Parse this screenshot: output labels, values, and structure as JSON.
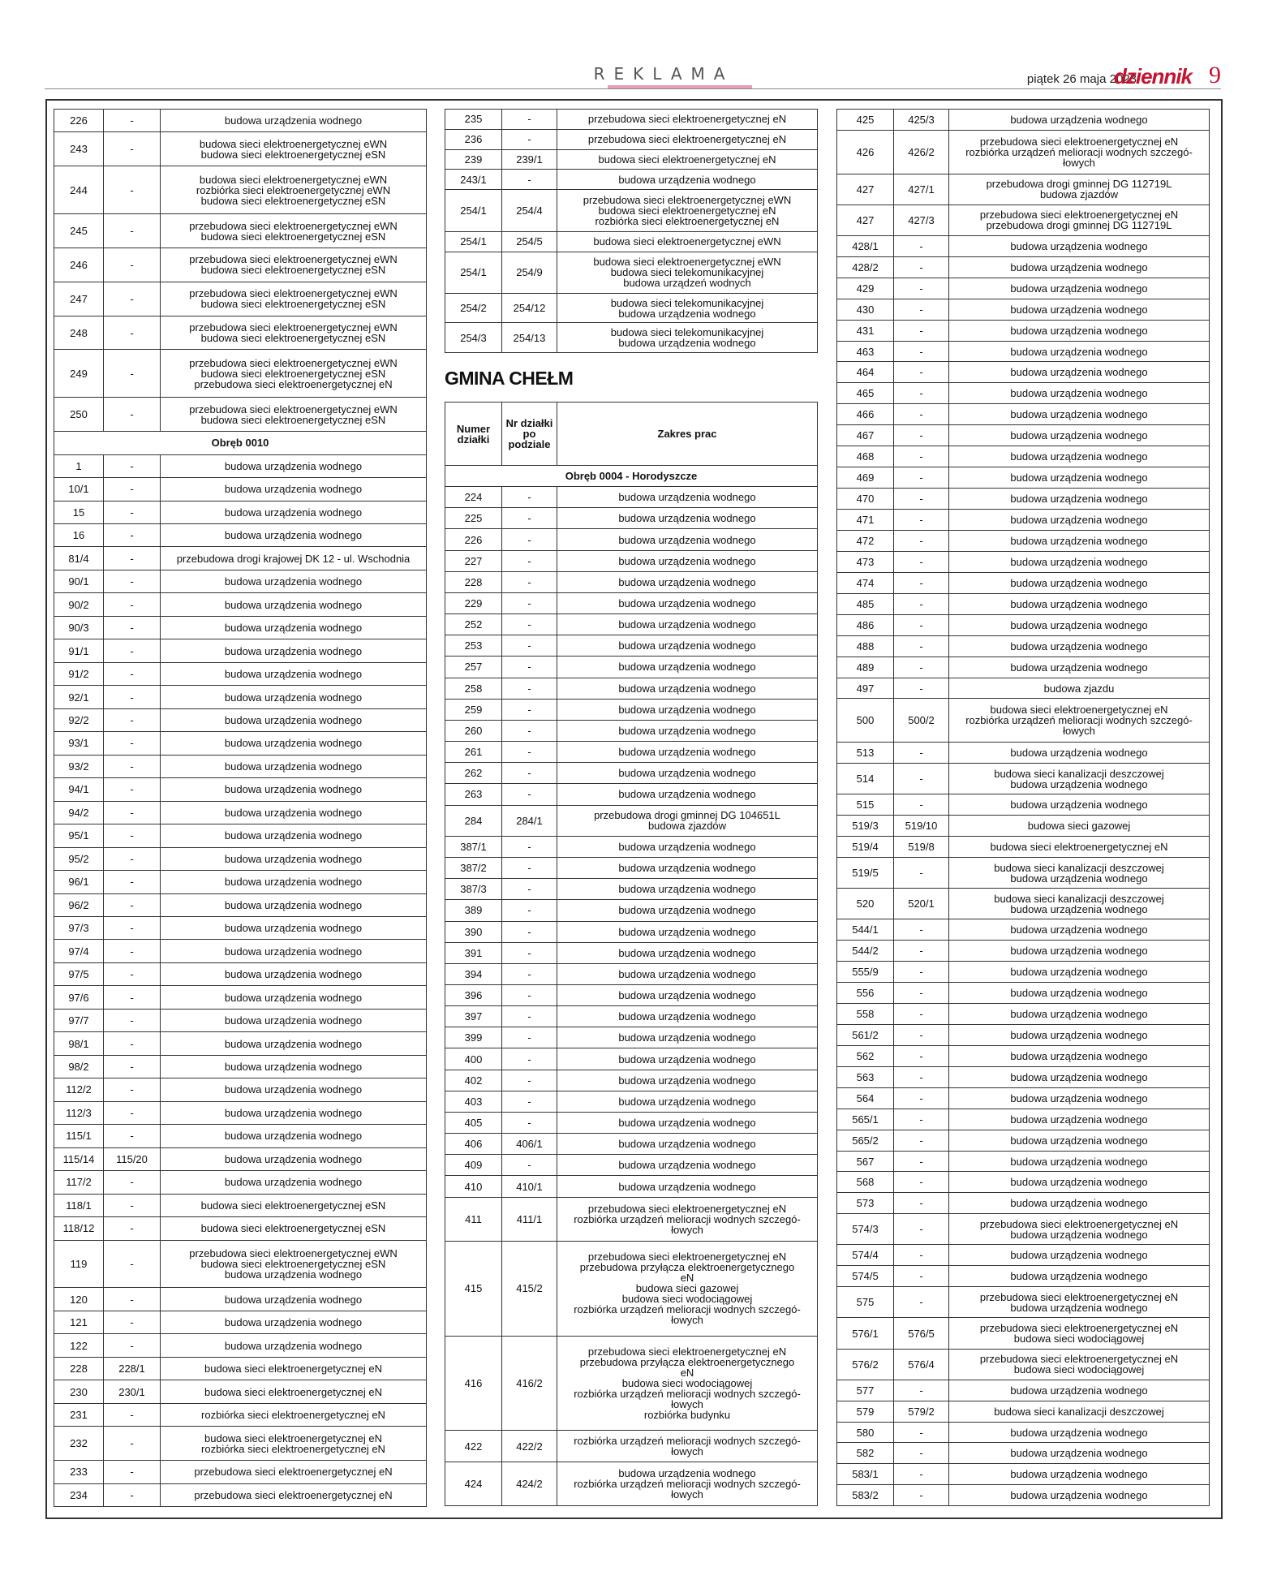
{
  "header": {
    "section_label": "REKLAMA",
    "date": "piątek 26 maja 2023",
    "brand": "dziennik",
    "page_number": "9"
  },
  "gmina_heading": "GMINA CHEŁM",
  "col1": [
    [
      "226",
      "-",
      "budowa urządzenia wodnego"
    ],
    [
      "243",
      "-",
      "budowa sieci elektroenergetycznej eWN\nbudowa sieci elektroenergetycznej eSN"
    ],
    [
      "244",
      "-",
      "budowa sieci elektroenergetycznej eWN\nrozbiórka sieci elektroenergetycznej eWN\nbudowa sieci elektroenergetycznej eSN"
    ],
    [
      "245",
      "-",
      "przebudowa sieci elektroenergetycznej eWN\nbudowa sieci elektroenergetycznej eSN"
    ],
    [
      "246",
      "-",
      "przebudowa sieci elektroenergetycznej eWN\nbudowa sieci elektroenergetycznej eSN"
    ],
    [
      "247",
      "-",
      "przebudowa sieci elektroenergetycznej eWN\nbudowa sieci elektroenergetycznej eSN"
    ],
    [
      "248",
      "-",
      "przebudowa sieci elektroenergetycznej eWN\nbudowa sieci elektroenergetycznej eSN"
    ],
    [
      "249",
      "-",
      "przebudowa sieci elektroenergetycznej eWN\nbudowa sieci elektroenergetycznej eSN\nprzebudowa sieci elektroenergetycznej eN"
    ],
    [
      "250",
      "-",
      "przebudowa sieci elektroenergetycznej eWN\nbudowa sieci elektroenergetycznej eSN"
    ],
    [
      "Obręb 0010"
    ],
    [
      "1",
      "-",
      "budowa urządzenia wodnego"
    ],
    [
      "10/1",
      "-",
      "budowa urządzenia wodnego"
    ],
    [
      "15",
      "-",
      "budowa urządzenia wodnego"
    ],
    [
      "16",
      "-",
      "budowa urządzenia wodnego"
    ],
    [
      "81/4",
      "-",
      "przebudowa drogi krajowej DK 12 - ul. Wschodnia"
    ],
    [
      "90/1",
      "-",
      "budowa urządzenia wodnego"
    ],
    [
      "90/2",
      "-",
      "budowa urządzenia wodnego"
    ],
    [
      "90/3",
      "-",
      "budowa urządzenia wodnego"
    ],
    [
      "91/1",
      "-",
      "budowa urządzenia wodnego"
    ],
    [
      "91/2",
      "-",
      "budowa urządzenia wodnego"
    ],
    [
      "92/1",
      "-",
      "budowa urządzenia wodnego"
    ],
    [
      "92/2",
      "-",
      "budowa urządzenia wodnego"
    ],
    [
      "93/1",
      "-",
      "budowa urządzenia wodnego"
    ],
    [
      "93/2",
      "-",
      "budowa urządzenia wodnego"
    ],
    [
      "94/1",
      "-",
      "budowa urządzenia wodnego"
    ],
    [
      "94/2",
      "-",
      "budowa urządzenia wodnego"
    ],
    [
      "95/1",
      "-",
      "budowa urządzenia wodnego"
    ],
    [
      "95/2",
      "-",
      "budowa urządzenia wodnego"
    ],
    [
      "96/1",
      "-",
      "budowa urządzenia wodnego"
    ],
    [
      "96/2",
      "-",
      "budowa urządzenia wodnego"
    ],
    [
      "97/3",
      "-",
      "budowa urządzenia wodnego"
    ],
    [
      "97/4",
      "-",
      "budowa urządzenia wodnego"
    ],
    [
      "97/5",
      "-",
      "budowa urządzenia wodnego"
    ],
    [
      "97/6",
      "-",
      "budowa urządzenia wodnego"
    ],
    [
      "97/7",
      "-",
      "budowa urządzenia wodnego"
    ],
    [
      "98/1",
      "-",
      "budowa urządzenia wodnego"
    ],
    [
      "98/2",
      "-",
      "budowa urządzenia wodnego"
    ],
    [
      "112/2",
      "-",
      "budowa urządzenia wodnego"
    ],
    [
      "112/3",
      "-",
      "budowa urządzenia wodnego"
    ],
    [
      "115/1",
      "-",
      "budowa urządzenia wodnego"
    ],
    [
      "115/14",
      "115/20",
      "budowa urządzenia wodnego"
    ],
    [
      "117/2",
      "-",
      "budowa urządzenia wodnego"
    ],
    [
      "118/1",
      "-",
      "budowa sieci elektroenergetycznej eSN"
    ],
    [
      "118/12",
      "-",
      "budowa sieci elektroenergetycznej eSN"
    ],
    [
      "119",
      "-",
      "przebudowa sieci elektroenergetycznej eWN\nbudowa sieci elektroenergetycznej eSN\nbudowa urządzenia wodnego"
    ],
    [
      "120",
      "-",
      "budowa urządzenia wodnego"
    ],
    [
      "121",
      "-",
      "budowa urządzenia wodnego"
    ],
    [
      "122",
      "-",
      "budowa urządzenia wodnego"
    ],
    [
      "228",
      "228/1",
      "budowa sieci elektroenergetycznej eN"
    ],
    [
      "230",
      "230/1",
      "budowa sieci elektroenergetycznej eN"
    ],
    [
      "231",
      "-",
      "rozbiórka sieci elektroenergetycznej eN"
    ],
    [
      "232",
      "-",
      "budowa sieci elektroenergetycznej eN\nrozbiórka sieci elektroenergetycznej eN"
    ],
    [
      "233",
      "-",
      "przebudowa sieci elektroenergetycznej eN"
    ],
    [
      "234",
      "-",
      "przebudowa sieci elektroenergetycznej eN"
    ]
  ],
  "col2a": [
    [
      "235",
      "-",
      "przebudowa sieci elektroenergetycznej eN"
    ],
    [
      "236",
      "-",
      "przebudowa sieci elektroenergetycznej eN"
    ],
    [
      "239",
      "239/1",
      "budowa sieci elektroenergetycznej eN"
    ],
    [
      "243/1",
      "-",
      "budowa urządzenia wodnego"
    ],
    [
      "254/1",
      "254/4",
      "przebudowa sieci elektroenergetycznej eWN\nbudowa sieci elektroenergetycznej eN\nrozbiórka sieci elektroenergetycznej eN"
    ],
    [
      "254/1",
      "254/5",
      "budowa sieci elektroenergetycznej eWN"
    ],
    [
      "254/1",
      "254/9",
      "budowa sieci elektroenergetycznej eWN\nbudowa sieci telekomunikacyjnej\nbudowa urządzeń wodnych"
    ],
    [
      "254/2",
      "254/12",
      "budowa sieci telekomunikacyjnej\nbudowa urządzenia wodnego"
    ],
    [
      "254/3",
      "254/13",
      "budowa sieci telekomunikacyjnej\nbudowa urządzenia wodnego"
    ]
  ],
  "col2b_header": {
    "c1": "Numer działki",
    "c2": "Nr działki po podziale",
    "c3": "Zakres prac"
  },
  "col2b": [
    [
      "Obręb 0004 - Horodyszcze"
    ],
    [
      "224",
      "-",
      "budowa urządzenia wodnego"
    ],
    [
      "225",
      "-",
      "budowa urządzenia wodnego"
    ],
    [
      "226",
      "-",
      "budowa urządzenia wodnego"
    ],
    [
      "227",
      "-",
      "budowa urządzenia wodnego"
    ],
    [
      "228",
      "-",
      "budowa urządzenia wodnego"
    ],
    [
      "229",
      "-",
      "budowa urządzenia wodnego"
    ],
    [
      "252",
      "-",
      "budowa urządzenia wodnego"
    ],
    [
      "253",
      "-",
      "budowa urządzenia wodnego"
    ],
    [
      "257",
      "-",
      "budowa urządzenia wodnego"
    ],
    [
      "258",
      "-",
      "budowa urządzenia wodnego"
    ],
    [
      "259",
      "-",
      "budowa urządzenia wodnego"
    ],
    [
      "260",
      "-",
      "budowa urządzenia wodnego"
    ],
    [
      "261",
      "-",
      "budowa urządzenia wodnego"
    ],
    [
      "262",
      "-",
      "budowa urządzenia wodnego"
    ],
    [
      "263",
      "-",
      "budowa urządzenia wodnego"
    ],
    [
      "284",
      "284/1",
      "przebudowa drogi gminnej DG 104651L\nbudowa zjazdów"
    ],
    [
      "387/1",
      "-",
      "budowa urządzenia wodnego"
    ],
    [
      "387/2",
      "-",
      "budowa urządzenia wodnego"
    ],
    [
      "387/3",
      "-",
      "budowa urządzenia wodnego"
    ],
    [
      "389",
      "-",
      "budowa urządzenia wodnego"
    ],
    [
      "390",
      "-",
      "budowa urządzenia wodnego"
    ],
    [
      "391",
      "-",
      "budowa urządzenia wodnego"
    ],
    [
      "394",
      "-",
      "budowa urządzenia wodnego"
    ],
    [
      "396",
      "-",
      "budowa urządzenia wodnego"
    ],
    [
      "397",
      "-",
      "budowa urządzenia wodnego"
    ],
    [
      "399",
      "-",
      "budowa urządzenia wodnego"
    ],
    [
      "400",
      "-",
      "budowa urządzenia wodnego"
    ],
    [
      "402",
      "-",
      "budowa urządzenia wodnego"
    ],
    [
      "403",
      "-",
      "budowa urządzenia wodnego"
    ],
    [
      "405",
      "-",
      "budowa urządzenia wodnego"
    ],
    [
      "406",
      "406/1",
      "budowa urządzenia wodnego"
    ],
    [
      "409",
      "-",
      "budowa urządzenia wodnego"
    ],
    [
      "410",
      "410/1",
      "budowa urządzenia wodnego"
    ],
    [
      "411",
      "411/1",
      "przebudowa sieci elektroenergetycznej eN\nrozbiórka urządzeń melioracji wodnych szczegó-\nłowych"
    ],
    [
      "415",
      "415/2",
      "przebudowa sieci elektroenergetycznej eN\nprzebudowa przyłącza elektroenergetycznego\neN\nbudowa sieci gazowej\nbudowa sieci wodociągowej\nrozbiórka urządzeń melioracji wodnych szczegó-\nłowych"
    ],
    [
      "416",
      "416/2",
      "przebudowa sieci elektroenergetycznej eN\nprzebudowa przyłącza elektroenergetycznego\neN\nbudowa sieci wodociągowej\nrozbiórka urządzeń melioracji wodnych szczegó-\nłowych\nrozbiórka budynku"
    ],
    [
      "422",
      "422/2",
      "rozbiórka urządzeń melioracji wodnych szczegó-\nłowych"
    ],
    [
      "424",
      "424/2",
      "budowa urządzenia wodnego\nrozbiórka urządzeń melioracji wodnych szczegó-\nłowych"
    ]
  ],
  "col3": [
    [
      "425",
      "425/3",
      "budowa urządzenia wodnego"
    ],
    [
      "426",
      "426/2",
      "przebudowa sieci elektroenergetycznej eN\nrozbiórka urządzeń melioracji wodnych szczegó-\nłowych"
    ],
    [
      "427",
      "427/1",
      "przebudowa drogi gminnej DG 112719L\nbudowa zjazdów"
    ],
    [
      "427",
      "427/3",
      "przebudowa sieci elektroenergetycznej eN\nprzebudowa drogi gminnej DG 112719L"
    ],
    [
      "428/1",
      "-",
      "budowa urządzenia wodnego"
    ],
    [
      "428/2",
      "-",
      "budowa urządzenia wodnego"
    ],
    [
      "429",
      "-",
      "budowa urządzenia wodnego"
    ],
    [
      "430",
      "-",
      "budowa urządzenia wodnego"
    ],
    [
      "431",
      "-",
      "budowa urządzenia wodnego"
    ],
    [
      "463",
      "-",
      "budowa urządzenia wodnego"
    ],
    [
      "464",
      "-",
      "budowa urządzenia wodnego"
    ],
    [
      "465",
      "-",
      "budowa urządzenia wodnego"
    ],
    [
      "466",
      "-",
      "budowa urządzenia wodnego"
    ],
    [
      "467",
      "-",
      "budowa urządzenia wodnego"
    ],
    [
      "468",
      "-",
      "budowa urządzenia wodnego"
    ],
    [
      "469",
      "-",
      "budowa urządzenia wodnego"
    ],
    [
      "470",
      "-",
      "budowa urządzenia wodnego"
    ],
    [
      "471",
      "-",
      "budowa urządzenia wodnego"
    ],
    [
      "472",
      "-",
      "budowa urządzenia wodnego"
    ],
    [
      "473",
      "-",
      "budowa urządzenia wodnego"
    ],
    [
      "474",
      "-",
      "budowa urządzenia wodnego"
    ],
    [
      "485",
      "-",
      "budowa urządzenia wodnego"
    ],
    [
      "486",
      "-",
      "budowa urządzenia wodnego"
    ],
    [
      "488",
      "-",
      "budowa urządzenia wodnego"
    ],
    [
      "489",
      "-",
      "budowa urządzenia wodnego"
    ],
    [
      "497",
      "-",
      "budowa zjazdu"
    ],
    [
      "500",
      "500/2",
      "budowa sieci elektroenergetycznej eN\nrozbiórka urządzeń melioracji wodnych szczegó-\nłowych"
    ],
    [
      "513",
      "-",
      "budowa urządzenia wodnego"
    ],
    [
      "514",
      "-",
      "budowa sieci kanalizacji deszczowej\nbudowa urządzenia wodnego"
    ],
    [
      "515",
      "-",
      "budowa urządzenia wodnego"
    ],
    [
      "519/3",
      "519/10",
      "budowa sieci gazowej"
    ],
    [
      "519/4",
      "519/8",
      "budowa sieci elektroenergetycznej eN"
    ],
    [
      "519/5",
      "-",
      "budowa sieci kanalizacji deszczowej\nbudowa urządzenia wodnego"
    ],
    [
      "520",
      "520/1",
      "budowa sieci kanalizacji deszczowej\nbudowa urządzenia wodnego"
    ],
    [
      "544/1",
      "-",
      "budowa urządzenia wodnego"
    ],
    [
      "544/2",
      "-",
      "budowa urządzenia wodnego"
    ],
    [
      "555/9",
      "-",
      "budowa urządzenia wodnego"
    ],
    [
      "556",
      "-",
      "budowa urządzenia wodnego"
    ],
    [
      "558",
      "-",
      "budowa urządzenia wodnego"
    ],
    [
      "561/2",
      "-",
      "budowa urządzenia wodnego"
    ],
    [
      "562",
      "-",
      "budowa urządzenia wodnego"
    ],
    [
      "563",
      "-",
      "budowa urządzenia wodnego"
    ],
    [
      "564",
      "-",
      "budowa urządzenia wodnego"
    ],
    [
      "565/1",
      "-",
      "budowa urządzenia wodnego"
    ],
    [
      "565/2",
      "-",
      "budowa urządzenia wodnego"
    ],
    [
      "567",
      "-",
      "budowa urządzenia wodnego"
    ],
    [
      "568",
      "-",
      "budowa urządzenia wodnego"
    ],
    [
      "573",
      "-",
      "budowa urządzenia wodnego"
    ],
    [
      "574/3",
      "-",
      "przebudowa sieci elektroenergetycznej eN\nbudowa urządzenia wodnego"
    ],
    [
      "574/4",
      "-",
      "budowa urządzenia wodnego"
    ],
    [
      "574/5",
      "-",
      "budowa urządzenia wodnego"
    ],
    [
      "575",
      "-",
      "przebudowa sieci elektroenergetycznej eN\nbudowa urządzenia wodnego"
    ],
    [
      "576/1",
      "576/5",
      "przebudowa sieci elektroenergetycznej eN\nbudowa sieci wodociągowej"
    ],
    [
      "576/2",
      "576/4",
      "przebudowa sieci elektroenergetycznej eN\nbudowa sieci wodociągowej"
    ],
    [
      "577",
      "-",
      "budowa urządzenia wodnego"
    ],
    [
      "579",
      "579/2",
      "budowa sieci kanalizacji deszczowej"
    ],
    [
      "580",
      "-",
      "budowa urządzenia wodnego"
    ],
    [
      "582",
      "-",
      "budowa urządzenia wodnego"
    ],
    [
      "583/1",
      "-",
      "budowa urządzenia wodnego"
    ],
    [
      "583/2",
      "-",
      "budowa urządzenia wodnego"
    ]
  ]
}
